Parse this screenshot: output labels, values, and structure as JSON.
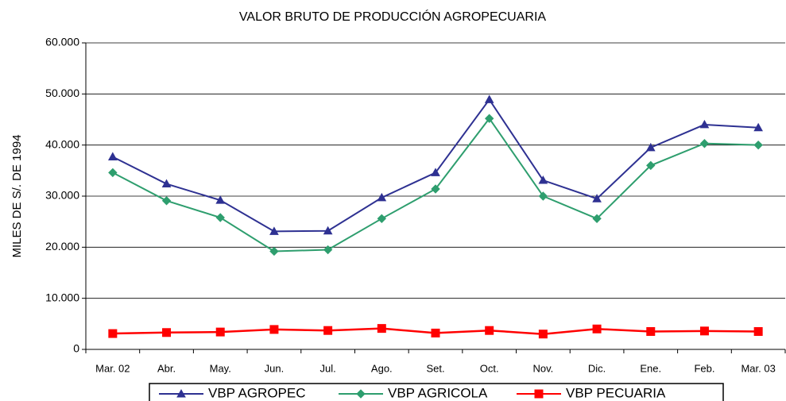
{
  "chart_data": {
    "type": "line",
    "title": "VALOR BRUTO DE PRODUCCIÓN AGROPECUARIA",
    "y_label": "MILES DE S/. DE 1994",
    "categories": [
      "Mar. 02",
      "Abr.",
      "May.",
      "Jun.",
      "Jul.",
      "Ago.",
      "Set.",
      "Oct.",
      "Nov.",
      "Dic.",
      "Ene.",
      "Feb.",
      "Mar. 03"
    ],
    "series": [
      {
        "name": "VBP AGROPEC",
        "color": "#2e3192",
        "marker": "triangle",
        "values": [
          37700,
          32400,
          29200,
          23100,
          23200,
          29700,
          34600,
          48900,
          33100,
          29500,
          39500,
          44000,
          43400
        ]
      },
      {
        "name": "VBP AGRICOLA",
        "color": "#2e9e6e",
        "marker": "diamond",
        "values": [
          34600,
          29100,
          25800,
          19200,
          19500,
          25600,
          31400,
          45200,
          30000,
          25600,
          36000,
          40300,
          40000
        ]
      },
      {
        "name": "VBP PECUARIA",
        "color": "#ff0000",
        "marker": "square",
        "values": [
          3100,
          3300,
          3400,
          3900,
          3700,
          4100,
          3200,
          3700,
          3000,
          4000,
          3500,
          3600,
          3500
        ]
      }
    ],
    "ylim": [
      0,
      60000
    ],
    "yticks": [
      0,
      {
        "value": 10000,
        "label": "10.000"
      },
      {
        "value": 20000,
        "label": "20.000"
      },
      {
        "value": 30000,
        "label": "30.000"
      },
      {
        "value": 40000,
        "label": "40.000"
      },
      {
        "value": 50000,
        "label": "50.000"
      },
      {
        "value": 60000,
        "label": "60.000"
      }
    ],
    "grid": true,
    "legend": "bottom"
  }
}
